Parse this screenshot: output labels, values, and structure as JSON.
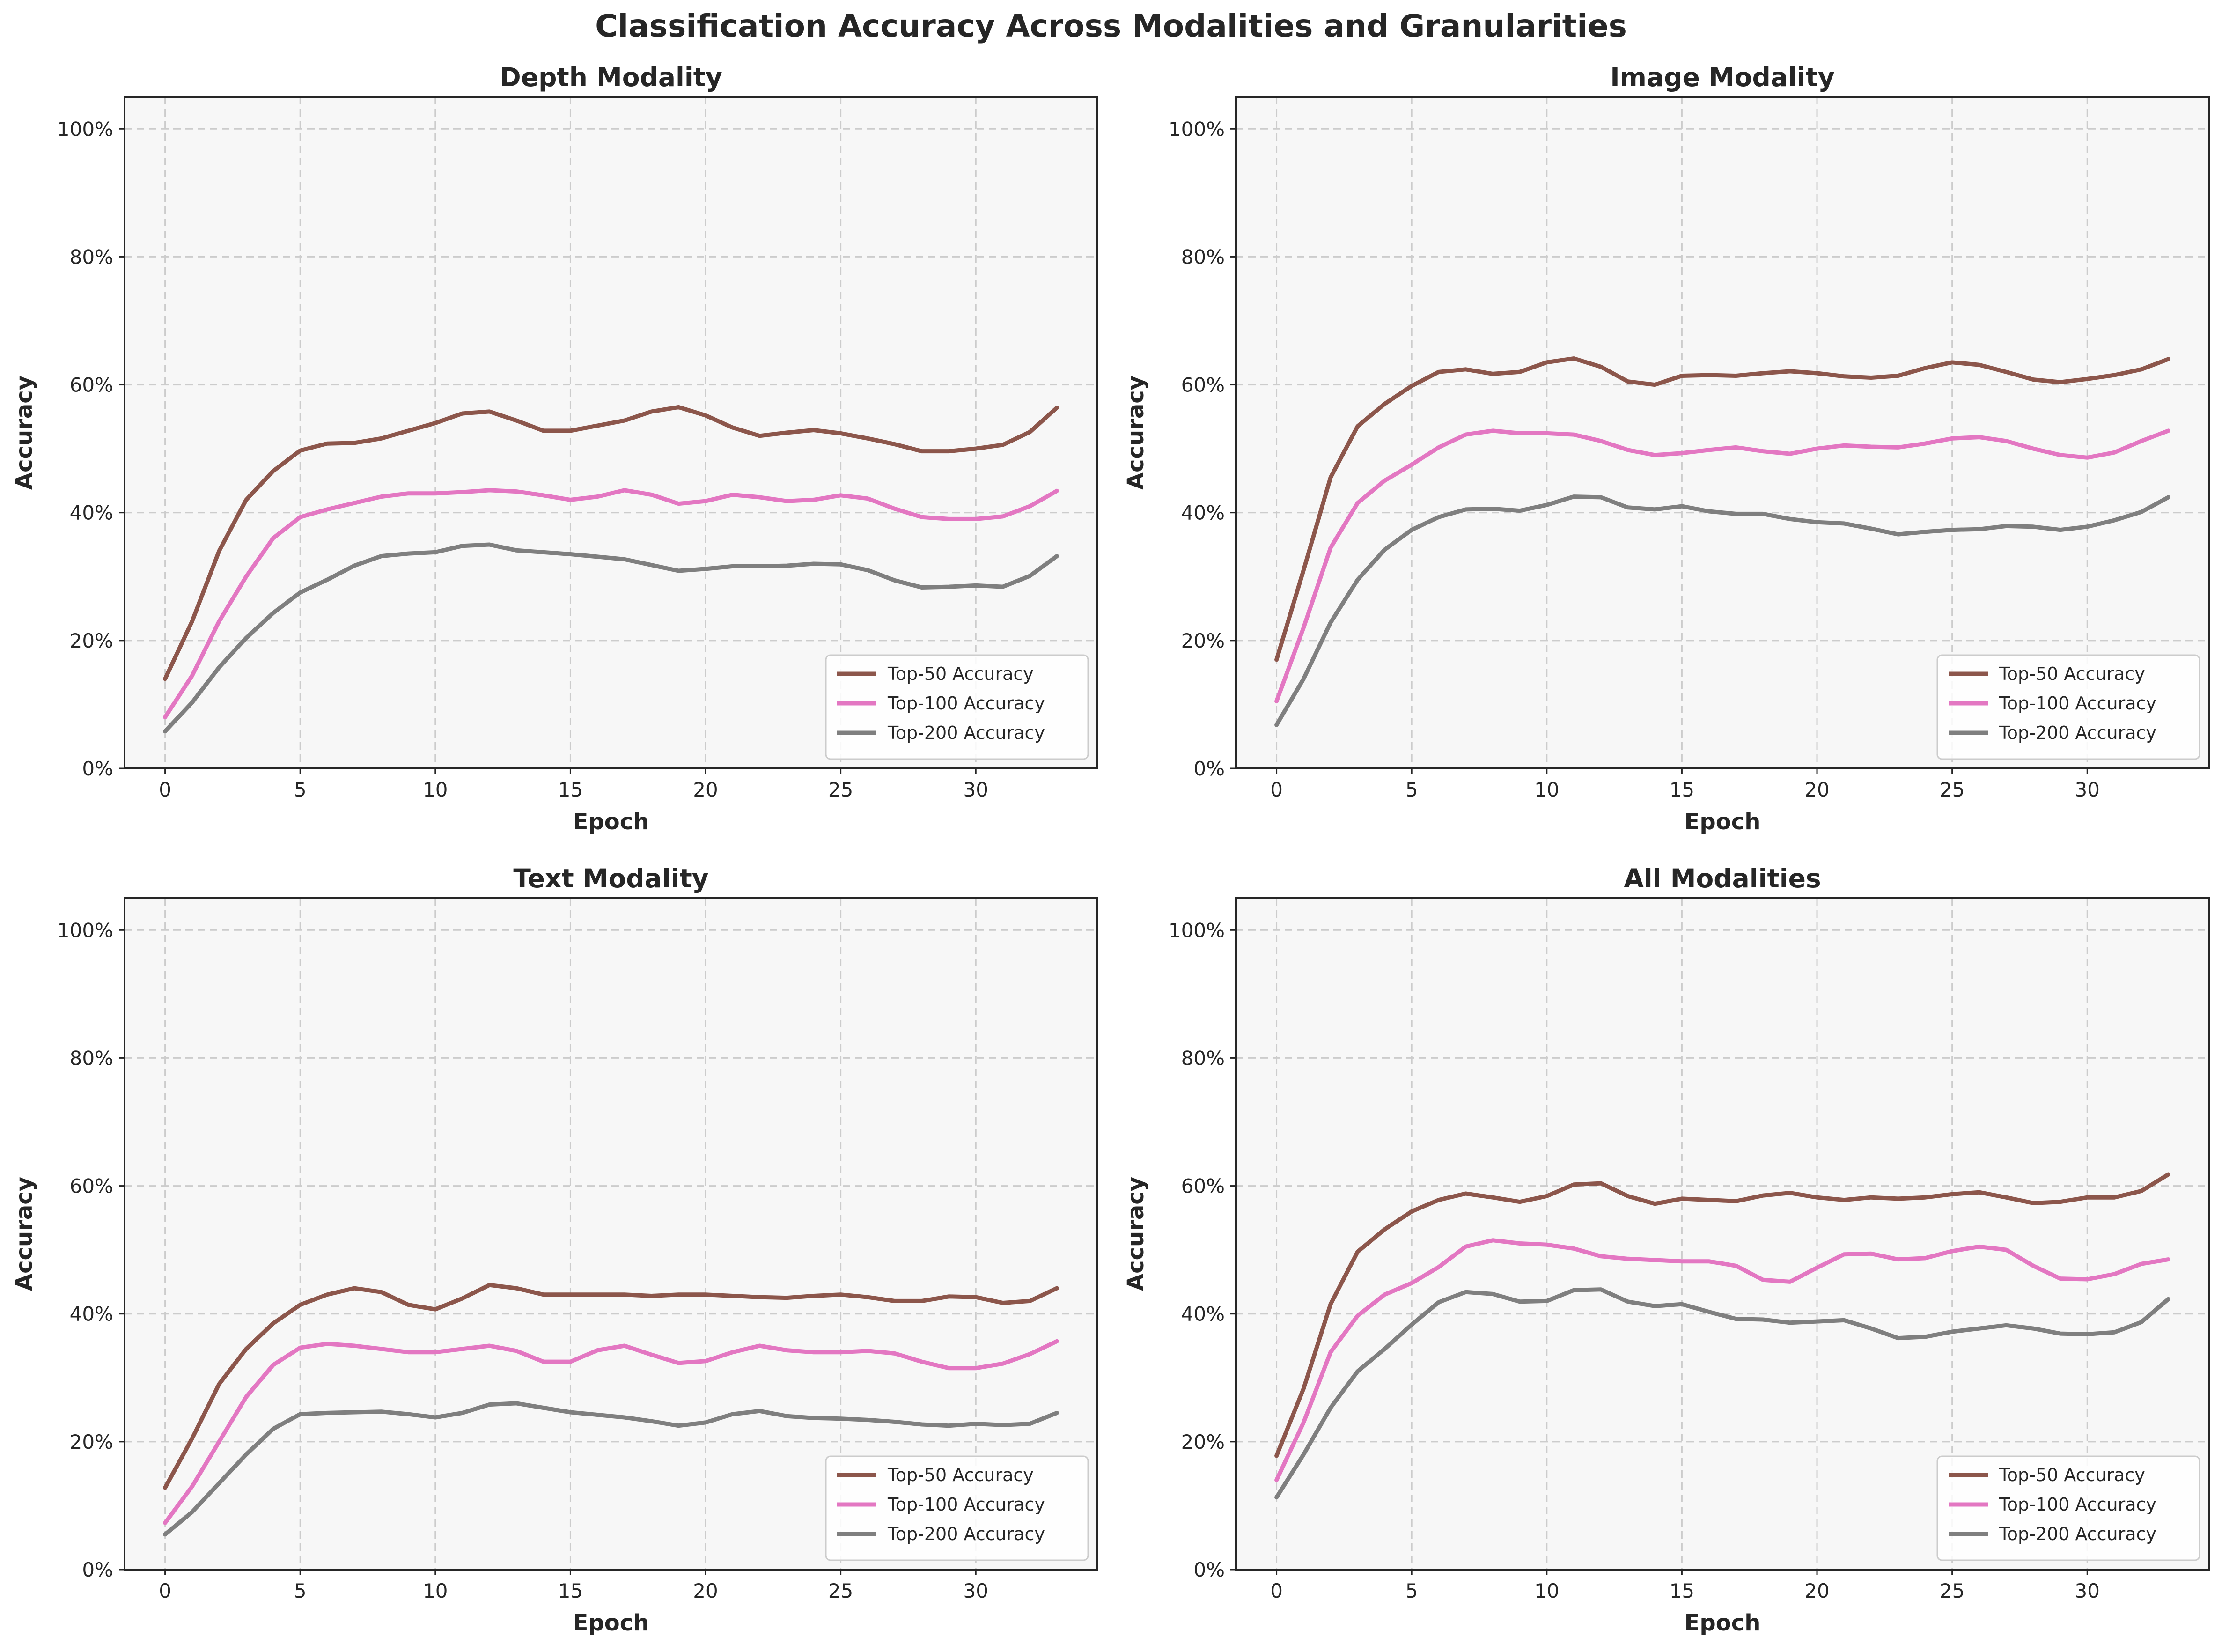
{
  "title": "Classification Accuracy Across Modalities and Granularities",
  "colors": {
    "Top-50 Accuracy": "#8c564b",
    "Top-100 Accuracy": "#e377c2",
    "Top-200 Accuracy": "#7f7f7f",
    "plot_bg": "#f7f7f7",
    "grid": "#cccccc"
  },
  "chart_data": [
    {
      "type": "line",
      "title": "Depth Modality",
      "xlabel": "Epoch",
      "ylabel": "Accuracy",
      "xlim": [
        -1.5,
        34.5
      ],
      "ylim": [
        0,
        1.05
      ],
      "xticks": [
        0,
        5,
        10,
        15,
        20,
        25,
        30
      ],
      "yticks": [
        0,
        0.2,
        0.4,
        0.6,
        0.8,
        1.0
      ],
      "ytick_labels": [
        "0%",
        "20%",
        "40%",
        "60%",
        "80%",
        "100%"
      ],
      "grid": true,
      "legend": "lower right",
      "x": [
        0,
        1,
        2,
        3,
        4,
        5,
        6,
        7,
        8,
        9,
        10,
        11,
        12,
        13,
        14,
        15,
        16,
        17,
        18,
        19,
        20,
        21,
        22,
        23,
        24,
        25,
        26,
        27,
        28,
        29,
        30,
        31,
        32,
        33
      ],
      "series": [
        {
          "name": "Top-50 Accuracy",
          "values": [
            0.14,
            0.23,
            0.34,
            0.42,
            0.465,
            0.497,
            0.508,
            0.509,
            0.516,
            0.528,
            0.54,
            0.555,
            0.558,
            0.544,
            0.528,
            0.528,
            0.536,
            0.544,
            0.558,
            0.565,
            0.552,
            0.533,
            0.52,
            0.525,
            0.529,
            0.524,
            0.516,
            0.507,
            0.496,
            0.496,
            0.5,
            0.506,
            0.526,
            0.564
          ]
        },
        {
          "name": "Top-100 Accuracy",
          "values": [
            0.08,
            0.145,
            0.23,
            0.3,
            0.36,
            0.393,
            0.405,
            0.415,
            0.425,
            0.43,
            0.43,
            0.432,
            0.435,
            0.433,
            0.427,
            0.42,
            0.425,
            0.435,
            0.428,
            0.414,
            0.418,
            0.428,
            0.424,
            0.418,
            0.42,
            0.427,
            0.422,
            0.406,
            0.393,
            0.39,
            0.39,
            0.394,
            0.41,
            0.434
          ]
        },
        {
          "name": "Top-200 Accuracy",
          "values": [
            0.058,
            0.103,
            0.158,
            0.204,
            0.243,
            0.275,
            0.295,
            0.317,
            0.332,
            0.336,
            0.338,
            0.348,
            0.35,
            0.341,
            0.338,
            0.335,
            0.331,
            0.327,
            0.318,
            0.309,
            0.312,
            0.316,
            0.316,
            0.317,
            0.32,
            0.319,
            0.31,
            0.294,
            0.283,
            0.284,
            0.286,
            0.284,
            0.301,
            0.332
          ]
        }
      ]
    },
    {
      "type": "line",
      "title": "Image Modality",
      "xlabel": "Epoch",
      "ylabel": "Accuracy",
      "xlim": [
        -1.5,
        34.5
      ],
      "ylim": [
        0,
        1.05
      ],
      "xticks": [
        0,
        5,
        10,
        15,
        20,
        25,
        30
      ],
      "yticks": [
        0,
        0.2,
        0.4,
        0.6,
        0.8,
        1.0
      ],
      "ytick_labels": [
        "0%",
        "20%",
        "40%",
        "60%",
        "80%",
        "100%"
      ],
      "grid": true,
      "legend": "lower right",
      "x": [
        0,
        1,
        2,
        3,
        4,
        5,
        6,
        7,
        8,
        9,
        10,
        11,
        12,
        13,
        14,
        15,
        16,
        17,
        18,
        19,
        20,
        21,
        22,
        23,
        24,
        25,
        26,
        27,
        28,
        29,
        30,
        31,
        32,
        33
      ],
      "series": [
        {
          "name": "Top-50 Accuracy",
          "values": [
            0.17,
            0.31,
            0.455,
            0.535,
            0.57,
            0.598,
            0.62,
            0.624,
            0.617,
            0.62,
            0.635,
            0.641,
            0.628,
            0.605,
            0.6,
            0.614,
            0.615,
            0.614,
            0.618,
            0.621,
            0.618,
            0.613,
            0.611,
            0.614,
            0.626,
            0.635,
            0.631,
            0.62,
            0.608,
            0.604,
            0.609,
            0.615,
            0.624,
            0.64
          ]
        },
        {
          "name": "Top-100 Accuracy",
          "values": [
            0.105,
            0.22,
            0.345,
            0.415,
            0.45,
            0.475,
            0.502,
            0.522,
            0.528,
            0.524,
            0.524,
            0.522,
            0.512,
            0.498,
            0.49,
            0.493,
            0.498,
            0.502,
            0.496,
            0.492,
            0.5,
            0.505,
            0.503,
            0.502,
            0.508,
            0.516,
            0.518,
            0.512,
            0.5,
            0.49,
            0.486,
            0.494,
            0.512,
            0.528
          ]
        },
        {
          "name": "Top-200 Accuracy",
          "values": [
            0.068,
            0.14,
            0.228,
            0.295,
            0.342,
            0.373,
            0.393,
            0.405,
            0.406,
            0.403,
            0.412,
            0.425,
            0.424,
            0.408,
            0.405,
            0.41,
            0.402,
            0.398,
            0.398,
            0.39,
            0.385,
            0.383,
            0.375,
            0.366,
            0.37,
            0.373,
            0.374,
            0.379,
            0.378,
            0.373,
            0.378,
            0.388,
            0.401,
            0.424
          ]
        }
      ]
    },
    {
      "type": "line",
      "title": "Text Modality",
      "xlabel": "Epoch",
      "ylabel": "Accuracy",
      "xlim": [
        -1.5,
        34.5
      ],
      "ylim": [
        0,
        1.05
      ],
      "xticks": [
        0,
        5,
        10,
        15,
        20,
        25,
        30
      ],
      "yticks": [
        0,
        0.2,
        0.4,
        0.6,
        0.8,
        1.0
      ],
      "ytick_labels": [
        "0%",
        "20%",
        "40%",
        "60%",
        "80%",
        "100%"
      ],
      "grid": true,
      "legend": "lower right",
      "x": [
        0,
        1,
        2,
        3,
        4,
        5,
        6,
        7,
        8,
        9,
        10,
        11,
        12,
        13,
        14,
        15,
        16,
        17,
        18,
        19,
        20,
        21,
        22,
        23,
        24,
        25,
        26,
        27,
        28,
        29,
        30,
        31,
        32,
        33
      ],
      "series": [
        {
          "name": "Top-50 Accuracy",
          "values": [
            0.128,
            0.205,
            0.29,
            0.345,
            0.385,
            0.414,
            0.43,
            0.44,
            0.434,
            0.414,
            0.407,
            0.424,
            0.445,
            0.44,
            0.43,
            0.43,
            0.43,
            0.43,
            0.428,
            0.43,
            0.43,
            0.428,
            0.426,
            0.425,
            0.428,
            0.43,
            0.426,
            0.42,
            0.42,
            0.427,
            0.426,
            0.417,
            0.42,
            0.44
          ]
        },
        {
          "name": "Top-100 Accuracy",
          "values": [
            0.073,
            0.13,
            0.2,
            0.27,
            0.32,
            0.347,
            0.353,
            0.35,
            0.345,
            0.34,
            0.34,
            0.345,
            0.35,
            0.342,
            0.325,
            0.325,
            0.343,
            0.35,
            0.336,
            0.323,
            0.326,
            0.34,
            0.35,
            0.343,
            0.34,
            0.34,
            0.342,
            0.338,
            0.325,
            0.315,
            0.315,
            0.322,
            0.337,
            0.357
          ]
        },
        {
          "name": "Top-200 Accuracy",
          "values": [
            0.055,
            0.09,
            0.135,
            0.18,
            0.22,
            0.243,
            0.245,
            0.246,
            0.247,
            0.243,
            0.238,
            0.245,
            0.258,
            0.26,
            0.253,
            0.246,
            0.242,
            0.238,
            0.232,
            0.225,
            0.23,
            0.243,
            0.248,
            0.24,
            0.237,
            0.236,
            0.234,
            0.231,
            0.227,
            0.225,
            0.228,
            0.226,
            0.228,
            0.245
          ]
        }
      ]
    },
    {
      "type": "line",
      "title": "All Modalities",
      "xlabel": "Epoch",
      "ylabel": "Accuracy",
      "xlim": [
        -1.5,
        34.5
      ],
      "ylim": [
        0,
        1.05
      ],
      "xticks": [
        0,
        5,
        10,
        15,
        20,
        25,
        30
      ],
      "yticks": [
        0,
        0.2,
        0.4,
        0.6,
        0.8,
        1.0
      ],
      "ytick_labels": [
        "0%",
        "20%",
        "40%",
        "60%",
        "80%",
        "100%"
      ],
      "grid": true,
      "legend": "lower right",
      "x": [
        0,
        1,
        2,
        3,
        4,
        5,
        6,
        7,
        8,
        9,
        10,
        11,
        12,
        13,
        14,
        15,
        16,
        17,
        18,
        19,
        20,
        21,
        22,
        23,
        24,
        25,
        26,
        27,
        28,
        29,
        30,
        31,
        32,
        33
      ],
      "series": [
        {
          "name": "Top-50 Accuracy",
          "values": [
            0.178,
            0.283,
            0.415,
            0.497,
            0.532,
            0.56,
            0.578,
            0.588,
            0.582,
            0.575,
            0.584,
            0.602,
            0.604,
            0.584,
            0.572,
            0.58,
            0.578,
            0.576,
            0.585,
            0.589,
            0.582,
            0.578,
            0.582,
            0.58,
            0.582,
            0.587,
            0.59,
            0.582,
            0.573,
            0.575,
            0.582,
            0.582,
            0.592,
            0.618
          ]
        },
        {
          "name": "Top-100 Accuracy",
          "values": [
            0.14,
            0.23,
            0.34,
            0.397,
            0.43,
            0.448,
            0.473,
            0.505,
            0.515,
            0.51,
            0.508,
            0.502,
            0.49,
            0.486,
            0.484,
            0.482,
            0.482,
            0.475,
            0.453,
            0.45,
            0.472,
            0.493,
            0.494,
            0.485,
            0.487,
            0.498,
            0.505,
            0.5,
            0.475,
            0.455,
            0.454,
            0.462,
            0.478,
            0.485
          ]
        },
        {
          "name": "Top-200 Accuracy",
          "values": [
            0.113,
            0.18,
            0.253,
            0.31,
            0.345,
            0.383,
            0.418,
            0.434,
            0.431,
            0.419,
            0.42,
            0.437,
            0.438,
            0.419,
            0.412,
            0.415,
            0.403,
            0.392,
            0.391,
            0.386,
            0.388,
            0.39,
            0.377,
            0.362,
            0.364,
            0.372,
            0.377,
            0.382,
            0.377,
            0.369,
            0.368,
            0.371,
            0.387,
            0.423
          ]
        }
      ]
    }
  ]
}
